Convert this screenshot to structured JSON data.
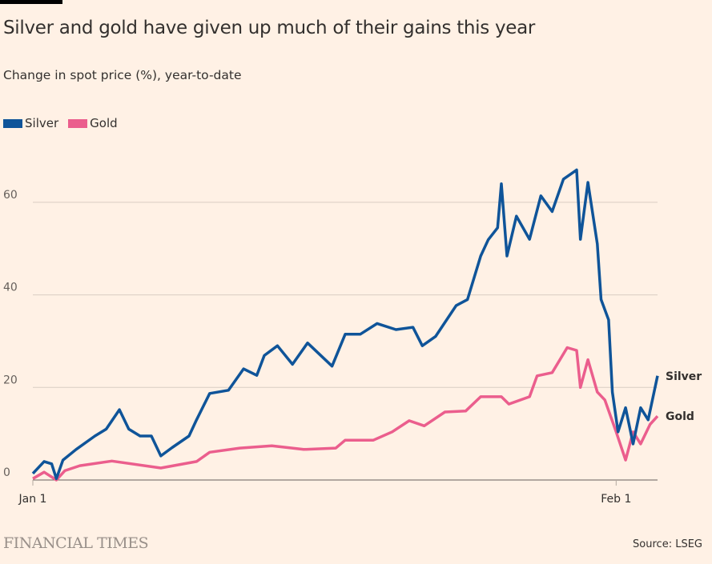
{
  "chart_data": {
    "type": "line",
    "title": "Silver and gold have given up much of their gains this year",
    "subtitle": "Change in spot price (%), year-to-date",
    "xlabel": "",
    "ylabel": "",
    "xlim": [
      0,
      33.2
    ],
    "ylim": [
      0,
      70
    ],
    "yticks": [
      0,
      20,
      40,
      60
    ],
    "ytick_labels": [
      "0",
      "20",
      "40",
      "60"
    ],
    "xticks": [
      0,
      31
    ],
    "xtick_labels": [
      "Jan 1",
      "Feb 1"
    ],
    "grid": true,
    "legend_position": "top-left",
    "series": [
      {
        "name": "Silver",
        "color": "#0f5499",
        "end_label": "Silver",
        "x": [
          0,
          0.6,
          1,
          1.25,
          1.6,
          2.3,
          3.3,
          3.9,
          4.6,
          5.1,
          5.7,
          6.3,
          6.8,
          7.4,
          8.3,
          8.7,
          9.4,
          10.4,
          11.2,
          11.9,
          12.3,
          13,
          13.8,
          14.6,
          15.9,
          16.6,
          17.4,
          18.3,
          19.3,
          20.2,
          20.7,
          21.4,
          22.5,
          23.1,
          23.8,
          24.2,
          24.7,
          24.9,
          25.2,
          25.7,
          26.4,
          27,
          27.6,
          28.2,
          28.9,
          29.1,
          29.5,
          30,
          30.2,
          30.6,
          30.8,
          31.1,
          31.5,
          31.9,
          32.3,
          32.7,
          33.2
        ],
        "values": [
          1.4,
          4,
          3.5,
          0.3,
          4.3,
          6.6,
          9.5,
          11,
          15.2,
          11,
          9.5,
          9.5,
          5.2,
          7,
          9.5,
          13,
          18.7,
          19.4,
          24,
          22.6,
          26.9,
          29,
          25,
          29.6,
          24.6,
          31.5,
          31.5,
          33.8,
          32.5,
          33,
          29,
          31,
          37.7,
          39,
          48.4,
          51.9,
          54.5,
          64,
          48.4,
          57,
          52,
          61.4,
          58,
          65,
          67,
          52,
          64.3,
          51,
          39,
          34.6,
          19,
          10.4,
          15.6,
          7.8,
          15.6,
          13,
          22.5
        ]
      },
      {
        "name": "Gold",
        "color": "#eb5e8d",
        "end_label": "Gold",
        "x": [
          0,
          0.6,
          1.25,
          1.7,
          2.5,
          4.2,
          6.8,
          8.7,
          9.4,
          11,
          12.7,
          14.4,
          16.1,
          16.6,
          18.1,
          19.1,
          20,
          20.8,
          21.9,
          23,
          23.8,
          24.9,
          25.3,
          26.4,
          26.8,
          27.6,
          28.4,
          28.9,
          29.1,
          29.5,
          30,
          30.4,
          31,
          31.5,
          31.9,
          32.3,
          32.8,
          33.2
        ],
        "values": [
          0.3,
          1.7,
          0,
          2,
          3.1,
          4.1,
          2.6,
          4,
          6,
          6.9,
          7.4,
          6.6,
          6.9,
          8.6,
          8.6,
          10.4,
          12.8,
          11.7,
          14.7,
          14.9,
          18,
          18,
          16.4,
          18,
          22.5,
          23.2,
          28.6,
          28,
          20,
          26,
          19,
          17.3,
          10.4,
          4.3,
          10.4,
          7.8,
          12,
          13.8
        ]
      }
    ],
    "source": "Source: LSEG",
    "publisher": "FINANCIAL TIMES"
  }
}
